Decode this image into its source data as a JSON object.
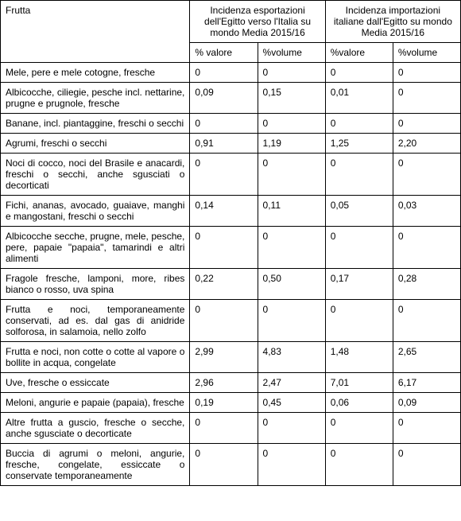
{
  "header": {
    "frutta": "Frutta",
    "group1": "Incidenza esportazioni dell'Egitto verso l'Italia su mondo Media 2015/16",
    "group2": "Incidenza importazioni italiane dall'Egitto su mondo Media  2015/16",
    "pct_valore": "% valore",
    "pct_volume": "%volume",
    "pct_valore2": "%valore",
    "pct_volume2": "%volume"
  },
  "rows": [
    {
      "label": "Mele, pere e mele cotogne, fresche",
      "v1": "0",
      "v2": "0",
      "v3": "0",
      "v4": "0"
    },
    {
      "label": "Albicocche, ciliegie, pesche incl. nettarine, prugne e prugnole, fresche",
      "v1": "0,09",
      "v2": "0,15",
      "v3": "0,01",
      "v4": "0"
    },
    {
      "label": "Banane, incl. piantaggine, freschi o secchi",
      "v1": "0",
      "v2": "0",
      "v3": "0",
      "v4": "0"
    },
    {
      "label": "Agrumi, freschi o secchi",
      "v1": "0,91",
      "v2": "1,19",
      "v3": "1,25",
      "v4": "2,20"
    },
    {
      "label": "Noci di cocco, noci del Brasile e anacardi, freschi o secchi, anche sgusciati o decorticati",
      "v1": "0",
      "v2": "0",
      "v3": "0",
      "v4": "0"
    },
    {
      "label": "Fichi, ananas, avocado, guaiave, manghi e mangostani, freschi o secchi",
      "v1": "0,14",
      "v2": "0,11",
      "v3": "0,05",
      "v4": "0,03"
    },
    {
      "label": "Albicocche secche, prugne, mele, pesche, pere, papaie \"papaia\", tamarindi e altri alimenti",
      "v1": "0",
      "v2": "0",
      "v3": "0",
      "v4": "0"
    },
    {
      "label": "Fragole fresche, lamponi, more, ribes bianco o rosso, uva spina",
      "v1": "0,22",
      "v2": "0,50",
      "v3": "0,17",
      "v4": "0,28"
    },
    {
      "label": "Frutta e noci, temporaneamente conservati, ad es. dal gas di anidride solforosa, in salamoia, nello zolfo",
      "v1": "0",
      "v2": "0",
      "v3": "0",
      "v4": "0"
    },
    {
      "label": "Frutta e noci, non cotte o cotte al vapore o bollite in acqua, congelate",
      "v1": "2,99",
      "v2": "4,83",
      "v3": "1,48",
      "v4": "2,65"
    },
    {
      "label": "Uve, fresche o essiccate",
      "v1": "2,96",
      "v2": "2,47",
      "v3": "7,01",
      "v4": "6,17"
    },
    {
      "label": "Meloni, angurie e papaie (papaia), fresche",
      "v1": "0,19",
      "v2": "0,45",
      "v3": "0,06",
      "v4": "0,09"
    },
    {
      "label": "Altre frutta a guscio, fresche o secche, anche sgusciate o decorticate",
      "v1": "0",
      "v2": "0",
      "v3": "0",
      "v4": "0"
    },
    {
      "label": "Buccia di agrumi o meloni, angurie, fresche, congelate, essiccate o conservate temporaneamente",
      "v1": "0",
      "v2": "0",
      "v3": "0",
      "v4": "0"
    }
  ]
}
